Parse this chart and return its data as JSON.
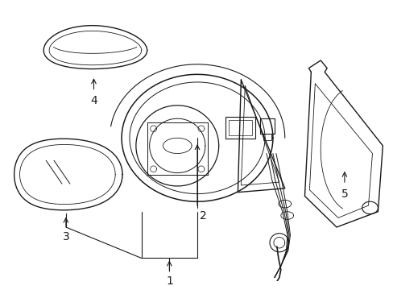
{
  "bg_color": "#ffffff",
  "line_color": "#1a1a1a",
  "fig_width": 4.89,
  "fig_height": 3.6,
  "dpi": 100,
  "label_fontsize": 10
}
